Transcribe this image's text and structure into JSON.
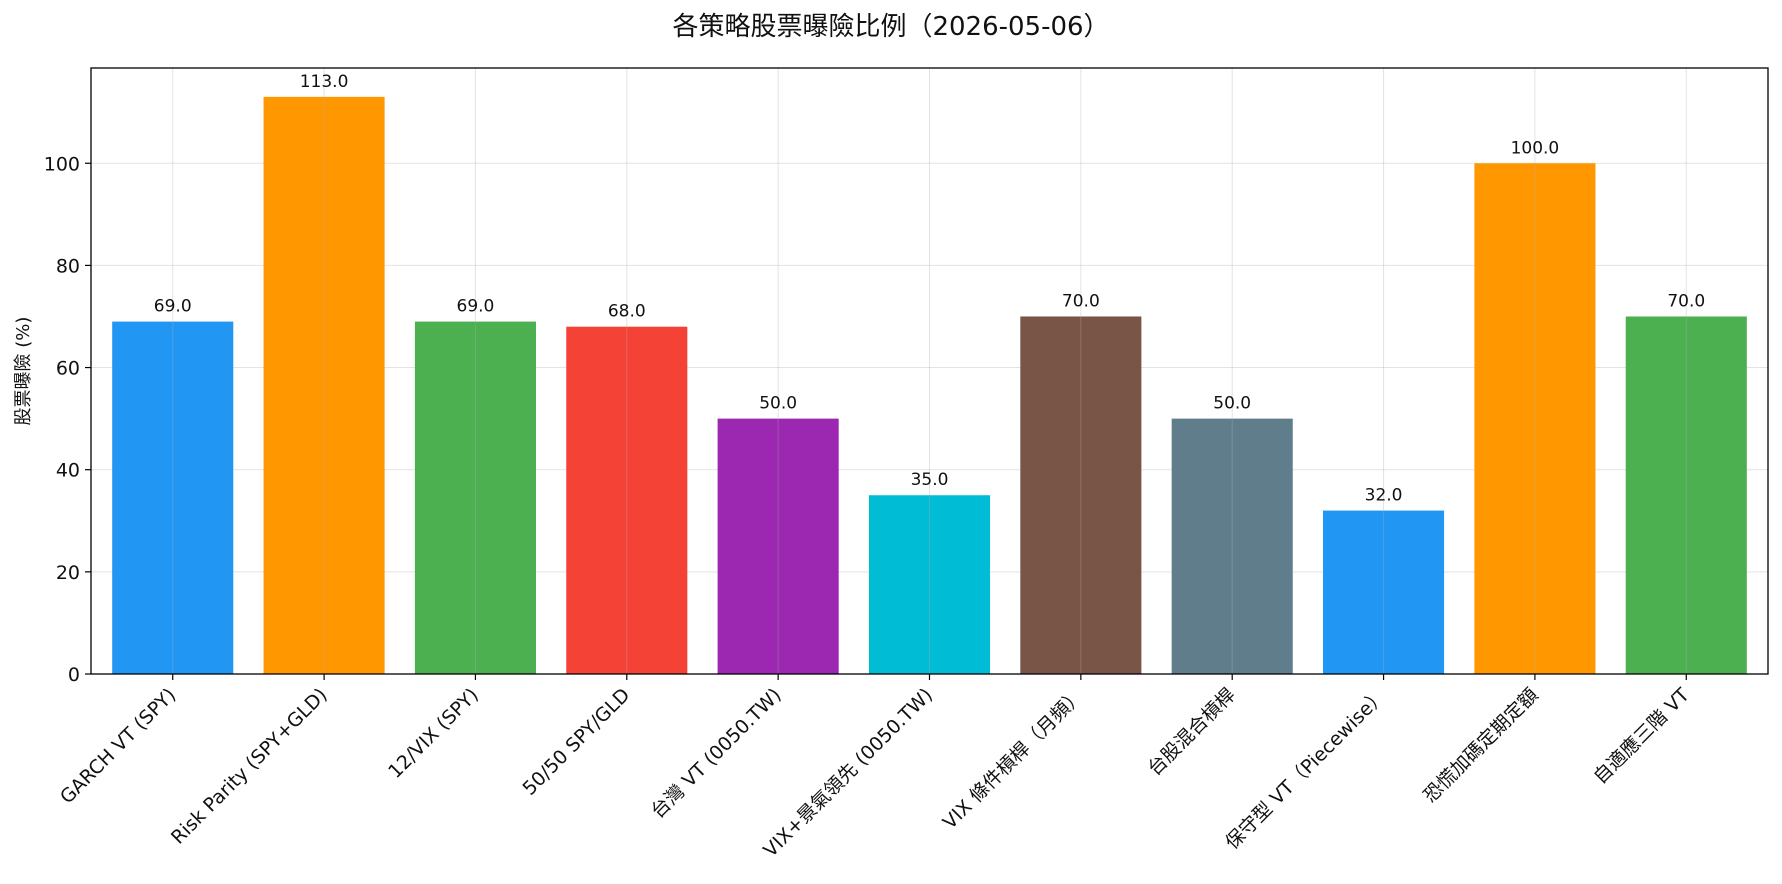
{
  "chart_data": {
    "type": "bar",
    "title": "各策略股票曝險比例（2026-05-06）",
    "xlabel": "",
    "ylabel": "股票曝險 (%)",
    "ylim": [
      0,
      118.65
    ],
    "yticks": [
      0,
      20,
      40,
      60,
      80,
      100
    ],
    "grid": true,
    "legend": "none",
    "categories": [
      "GARCH VT (SPY)",
      "Risk Parity (SPY+GLD)",
      "12/VIX (SPY)",
      "50/50 SPY/GLD",
      "台灣 VT (0050.TW)",
      "VIX+景氣領先 (0050.TW)",
      "VIX 條件槓桿（月頻）",
      "台股混合槓桿",
      "保守型 VT（Piecewise）",
      "恐慌加碼定期定額",
      "自適應三階 VT"
    ],
    "values": [
      69.0,
      113.0,
      69.0,
      68.0,
      50.0,
      35.0,
      70.0,
      50.0,
      32.0,
      100.0,
      70.0
    ],
    "value_labels": [
      "69.0",
      "113.0",
      "69.0",
      "68.0",
      "50.0",
      "35.0",
      "70.0",
      "50.0",
      "32.0",
      "100.0",
      "70.0"
    ],
    "colors": [
      "#2196F3",
      "#FF9800",
      "#4CAF50",
      "#F44336",
      "#9C27B0",
      "#00BCD4",
      "#795548",
      "#607D8B",
      "#2196F3",
      "#FF9800",
      "#4CAF50"
    ]
  }
}
